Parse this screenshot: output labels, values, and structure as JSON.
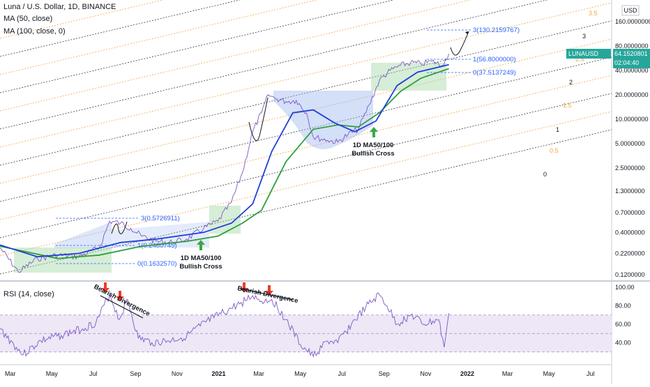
{
  "header": {
    "symbol_title": "Luna / U.S. Dollar, 1D, BINANCE",
    "ma50_label": "MA (50, close)",
    "ma100_label": "MA (100, close, 0)",
    "rsi_label": "RSI (14, close)",
    "currency": "USD"
  },
  "price_tag": {
    "symbol": "LUNAUSD",
    "price": "64.1520801",
    "countdown": "02:04:40"
  },
  "colors": {
    "price_line": "#7e57c2",
    "ma50": "#1e40d8",
    "ma100": "#2e9e3e",
    "fib_black": "#3a3a3a",
    "fib_orange": "#f4a640",
    "box_blue": "#9fb8f0",
    "box_green": "#a5d6a7",
    "arrow_green": "#3aa845",
    "arrow_red": "#ef3b2c",
    "tag_bg": "#26a69a",
    "rsi_line": "#7e57c2",
    "rsi_band": "#ede7f6"
  },
  "fib_channel_labels": {
    "black": [
      "0",
      "1",
      "2",
      "3"
    ],
    "orange": [
      "0.5",
      "1.5",
      "2.5",
      "3.5"
    ]
  },
  "levels_2020": [
    "3(0.5726911)",
    "1(0.2480745)",
    "0(0.1632570)"
  ],
  "levels_2021": [
    "3(130.2159767)",
    "1(56.8000000)",
    "0(37.5137249)"
  ],
  "annotations": {
    "cross1_line1": "1D MA50/100",
    "cross1_line2": "Bullish Cross",
    "cross2_line1": "1D MA50/100",
    "cross2_line2": "Bullish Cross",
    "divergence1": "Bearish Divergence",
    "divergence2": "Bearish Divergence"
  },
  "chart_data": [
    {
      "type": "line",
      "scale": "log",
      "ylabel": "USD",
      "y_ticks": [
        "160.0000000",
        "80.0000000",
        "40.0000000",
        "20.0000000",
        "10.0000000",
        "5.0000000",
        "2.5000000",
        "1.3000000",
        "0.7000000",
        "0.4000000",
        "0.2200000",
        "0.1200000"
      ],
      "y_tick_values": [
        160,
        80,
        40,
        20,
        10,
        5,
        2.5,
        1.3,
        0.7,
        0.4,
        0.22,
        0.12
      ],
      "x_ticks": [
        "Mar",
        "May",
        "Jul",
        "Sep",
        "Nov",
        "2021",
        "Mar",
        "May",
        "Jul",
        "Sep",
        "Nov",
        "2022",
        "Mar",
        "May",
        "Jul"
      ],
      "x_tick_dates": [
        "2020-03-01",
        "2020-05-01",
        "2020-07-01",
        "2020-09-01",
        "2020-11-01",
        "2021-01-01",
        "2021-03-01",
        "2021-05-01",
        "2021-07-01",
        "2021-09-01",
        "2021-11-01",
        "2022-01-01",
        "2022-03-01",
        "2022-05-01",
        "2022-07-01"
      ],
      "series": [
        {
          "name": "LUNAUSD",
          "x": [
            "2020-02-15",
            "2020-03-13",
            "2020-04-10",
            "2020-05-10",
            "2020-06-10",
            "2020-07-10",
            "2020-07-25",
            "2020-08-10",
            "2020-08-25",
            "2020-09-10",
            "2020-10-01",
            "2020-10-25",
            "2020-11-15",
            "2020-12-10",
            "2020-12-31",
            "2021-01-20",
            "2021-02-05",
            "2021-02-20",
            "2021-03-05",
            "2021-03-15",
            "2021-03-25",
            "2021-04-10",
            "2021-04-25",
            "2021-05-10",
            "2021-05-20",
            "2021-06-10",
            "2021-06-25",
            "2021-07-10",
            "2021-07-25",
            "2021-08-10",
            "2021-08-25",
            "2021-09-10",
            "2021-09-25",
            "2021-10-10",
            "2021-10-25",
            "2021-11-10",
            "2021-11-25",
            "2021-12-05"
          ],
          "y": [
            0.26,
            0.13,
            0.19,
            0.21,
            0.2,
            0.26,
            0.55,
            0.52,
            0.45,
            0.36,
            0.31,
            0.3,
            0.33,
            0.45,
            0.55,
            0.95,
            2.2,
            7.0,
            12.0,
            20.0,
            18.0,
            16.5,
            17.0,
            12.0,
            6.0,
            5.5,
            5.2,
            6.5,
            7.5,
            15.0,
            30.0,
            40.0,
            46.0,
            50.0,
            48.0,
            52.0,
            46.0,
            64.15
          ]
        },
        {
          "name": "MA (50, close)",
          "x": [
            "2020-02-15",
            "2020-04-10",
            "2020-06-10",
            "2020-08-10",
            "2020-10-01",
            "2020-12-10",
            "2021-01-20",
            "2021-02-20",
            "2021-03-20",
            "2021-04-20",
            "2021-05-20",
            "2021-06-20",
            "2021-07-20",
            "2021-08-20",
            "2021-09-20",
            "2021-10-20",
            "2021-12-05"
          ],
          "y": [
            0.28,
            0.2,
            0.22,
            0.3,
            0.33,
            0.4,
            0.52,
            0.9,
            4.0,
            12.0,
            13.0,
            9.0,
            7.0,
            9.5,
            26.0,
            38.0,
            47.0
          ]
        },
        {
          "name": "MA (100, close, 0)",
          "x": [
            "2020-02-15",
            "2020-05-10",
            "2020-07-10",
            "2020-09-10",
            "2020-11-15",
            "2020-12-31",
            "2021-02-05",
            "2021-03-05",
            "2021-04-10",
            "2021-05-20",
            "2021-06-25",
            "2021-07-25",
            "2021-08-25",
            "2021-09-25",
            "2021-10-25",
            "2021-12-05"
          ],
          "y": [
            0.27,
            0.19,
            0.21,
            0.27,
            0.31,
            0.36,
            0.52,
            0.75,
            3.0,
            7.5,
            8.5,
            8.0,
            12.0,
            22.0,
            32.0,
            42.0
          ]
        }
      ]
    },
    {
      "type": "line",
      "title": "RSI (14, close)",
      "y_ticks": [
        "100.00",
        "80.00",
        "60.00",
        "40.00"
      ],
      "ylim": [
        20,
        100
      ],
      "series": [
        {
          "name": "RSI (14, close)",
          "x": [
            "2020-02-15",
            "2020-03-10",
            "2020-03-20",
            "2020-04-15",
            "2020-05-15",
            "2020-06-15",
            "2020-07-05",
            "2020-07-25",
            "2020-08-08",
            "2020-08-20",
            "2020-09-05",
            "2020-09-25",
            "2020-10-20",
            "2020-11-15",
            "2020-12-05",
            "2020-12-25",
            "2021-01-15",
            "2021-02-01",
            "2021-02-20",
            "2021-03-05",
            "2021-03-20",
            "2021-04-10",
            "2021-05-01",
            "2021-05-20",
            "2021-06-10",
            "2021-06-25",
            "2021-07-15",
            "2021-08-05",
            "2021-08-25",
            "2021-09-05",
            "2021-09-20",
            "2021-10-10",
            "2021-10-30",
            "2021-11-20",
            "2021-11-28",
            "2021-12-05"
          ],
          "y": [
            55,
            35,
            27,
            42,
            48,
            55,
            62,
            92,
            65,
            87,
            45,
            40,
            42,
            47,
            58,
            67,
            75,
            82,
            91,
            85,
            87,
            65,
            38,
            25,
            42,
            40,
            60,
            78,
            92,
            80,
            60,
            70,
            60,
            65,
            35,
            72
          ]
        }
      ]
    }
  ]
}
